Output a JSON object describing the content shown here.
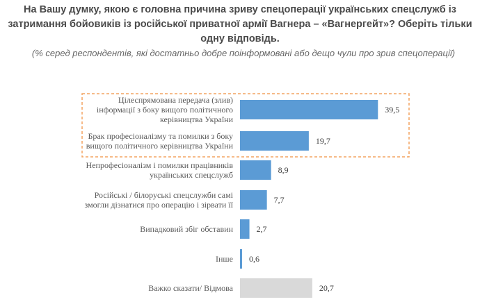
{
  "chart_data": {
    "type": "bar",
    "orientation": "horizontal",
    "title_lines": [
      "На Вашу думку, якою є головна причина зриву спецоперації українських спецслужб із",
      "затримання бойовиків із російської приватної армії Вагнера – «Вагнергейт»? Оберіть тільки",
      "одну відповідь."
    ],
    "subtitle": "(% серед респондентів, які достатньо добре поінформовані або дещо чули про зрив спецоперації)",
    "categories": [
      [
        "Цілеспрямована передача (злив)",
        "інформації з боку вищого політичного",
        "керівництва України"
      ],
      [
        "Брак професіоналізму та помилки з боку",
        "вищого політичного керівництва України"
      ],
      [
        "Непрофесіоналізм і помилки працівників",
        "українських спецслужб"
      ],
      [
        "Російські / білоруські спецслужби самі",
        "змогли дізнатися про операцію і зірвати її"
      ],
      [
        "Випадковий збіг обставин"
      ],
      [
        "Інше"
      ],
      [
        "Важко сказати/ Відмова"
      ]
    ],
    "values": [
      39.5,
      19.7,
      8.9,
      7.7,
      2.7,
      0.6,
      20.7
    ],
    "value_labels": [
      "39,5",
      "19,7",
      "8,9",
      "7,7",
      "2,7",
      "0,6",
      "20,7"
    ],
    "colors": [
      "#5b9bd5",
      "#5b9bd5",
      "#5b9bd5",
      "#5b9bd5",
      "#5b9bd5",
      "#5b9bd5",
      "#d9d9d9"
    ],
    "highlight_color": "#f4a460",
    "highlighted_indices": [
      0,
      1
    ],
    "xlim": [
      0,
      40
    ],
    "grid": false
  }
}
